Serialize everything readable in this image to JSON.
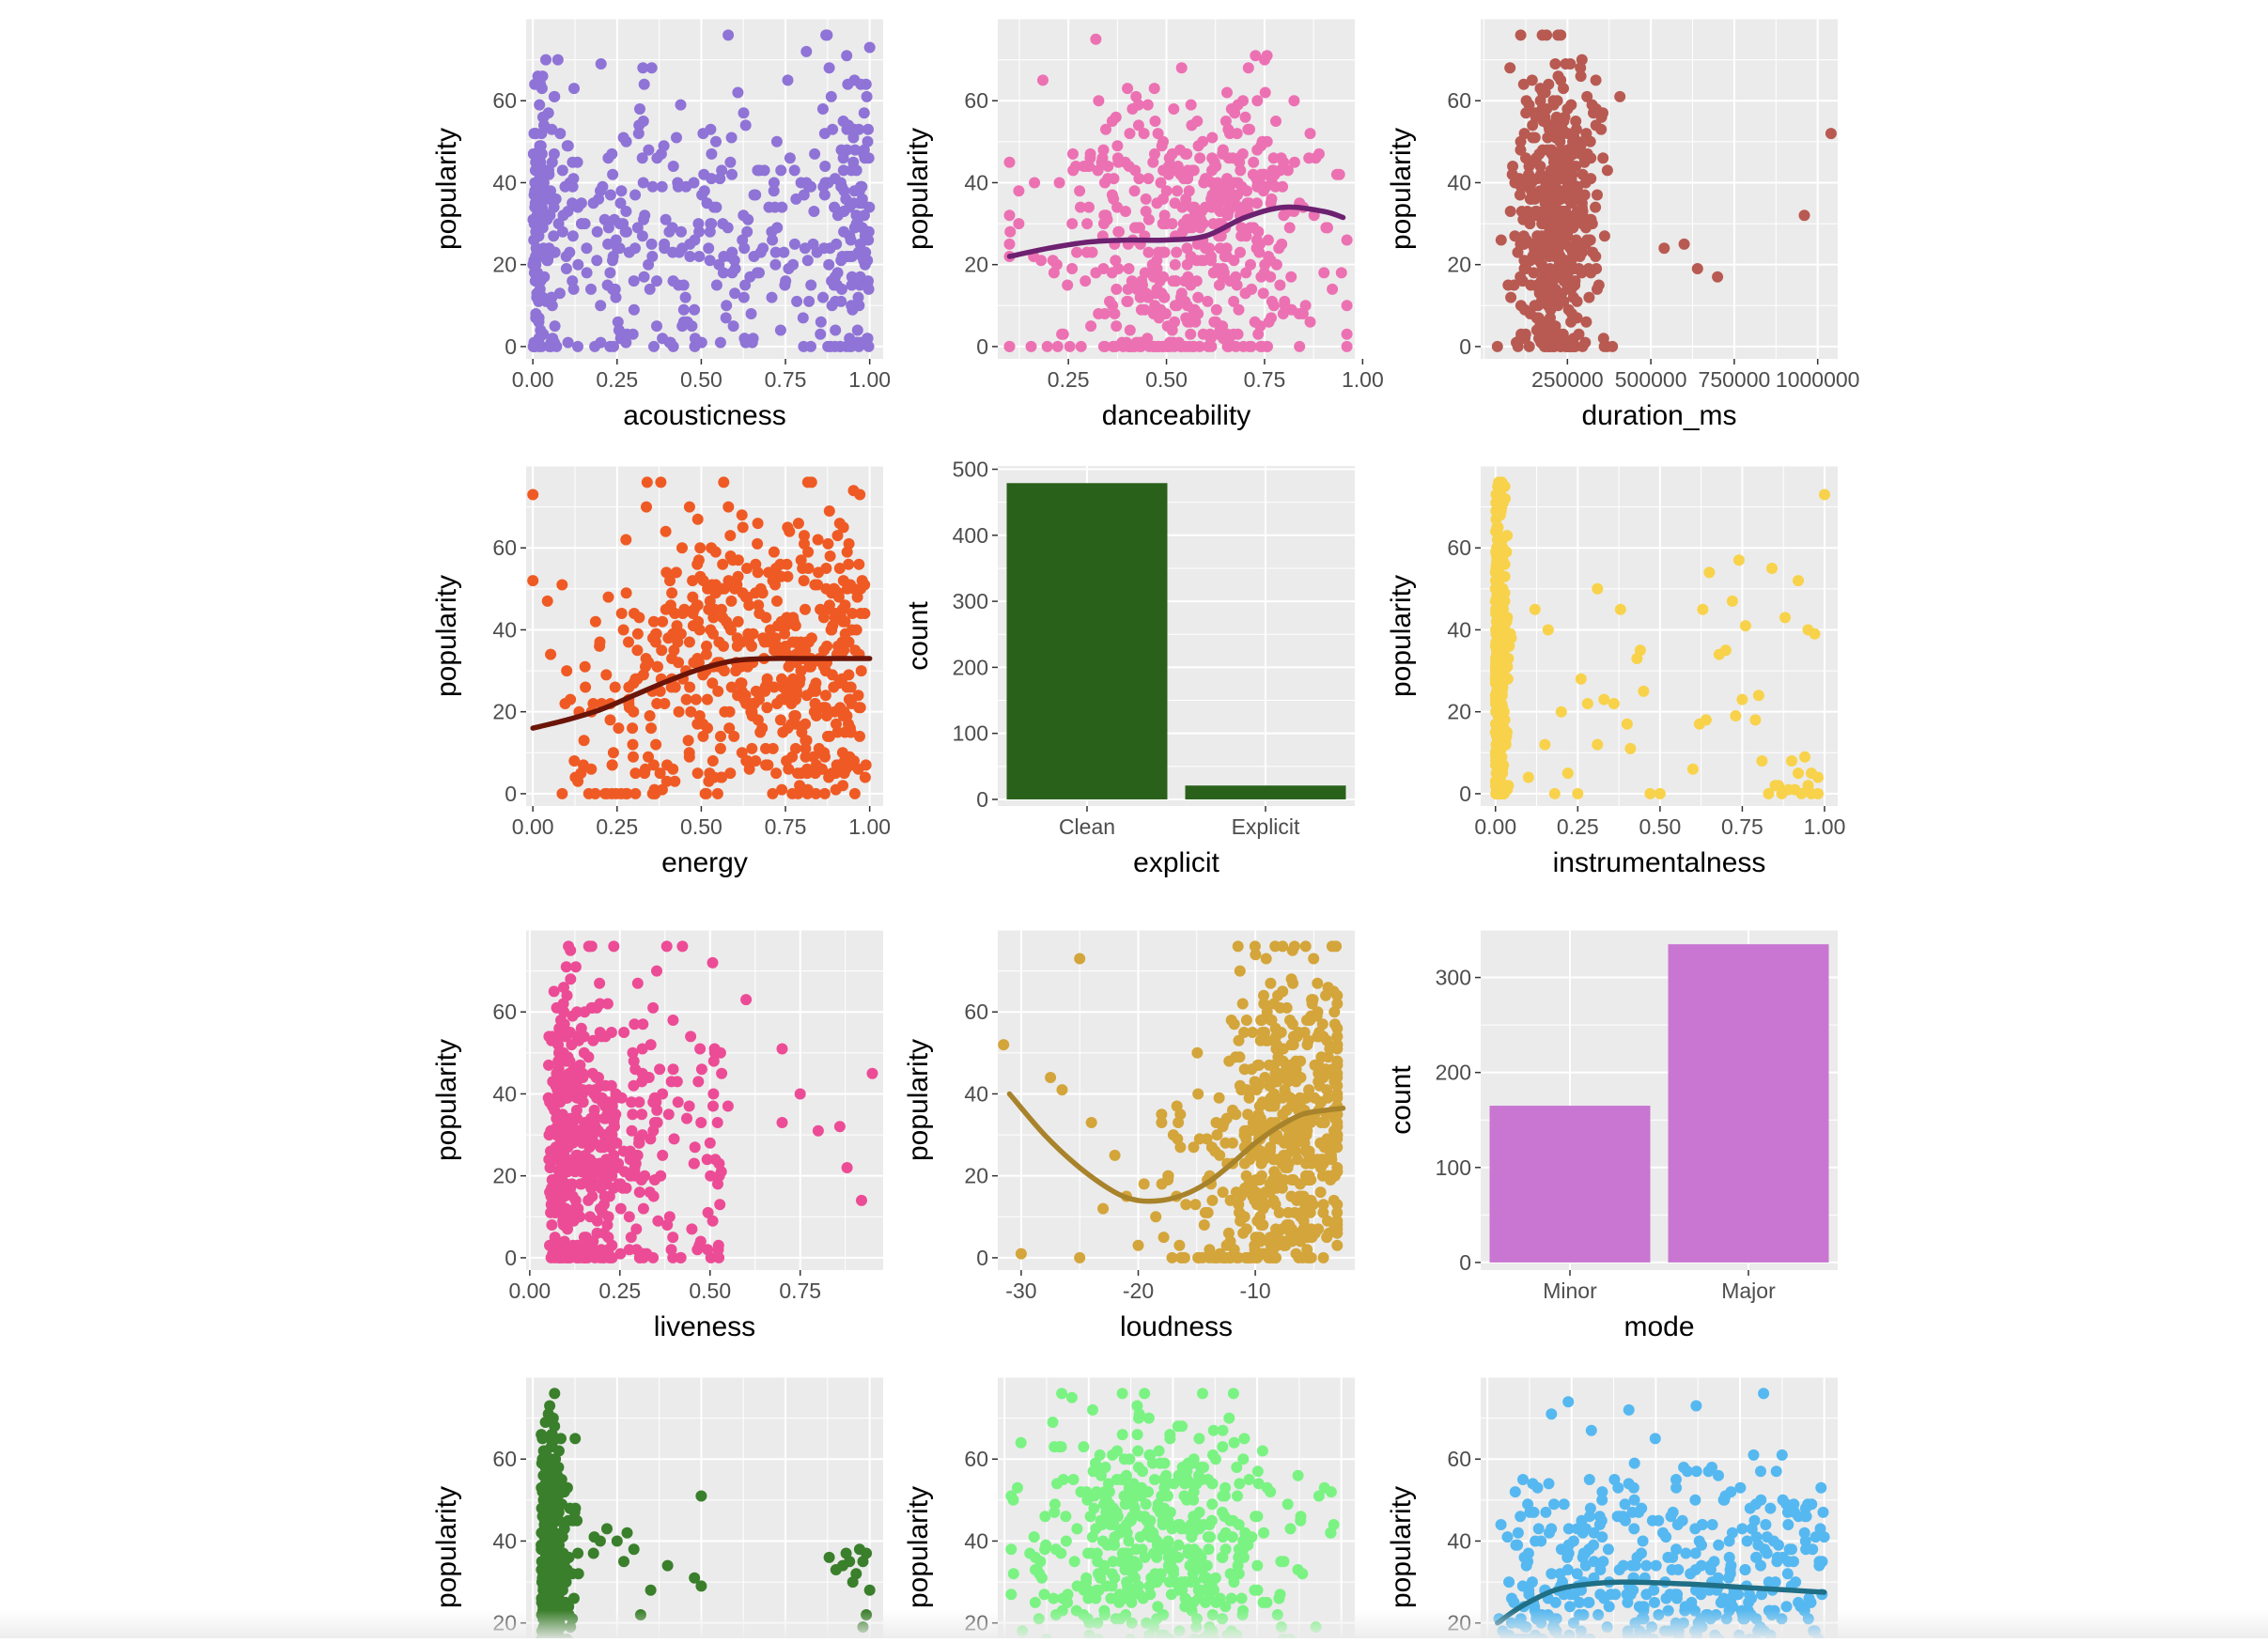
{
  "chart_data": [
    {
      "type": "scatter",
      "xlabel": "acousticness",
      "ylabel": "popularity",
      "color": "#8f73d6",
      "xlim": [
        -0.02,
        1.04
      ],
      "ylim": [
        -3,
        80
      ],
      "xticks": [
        0,
        0.25,
        0.5,
        0.75,
        1
      ],
      "xtick_labels": [
        "0.00",
        "0.25",
        "0.50",
        "0.75",
        "1.00"
      ],
      "yticks": [
        0,
        20,
        40,
        60
      ],
      "ytick_labels": [
        "0",
        "20",
        "40",
        "60"
      ],
      "smooth": null,
      "seed": 11,
      "n": 520,
      "x_dist": "acoustic",
      "y_mean": 30,
      "y_sd": 18,
      "y_max": 76,
      "extra_points": [
        [
          0.58,
          76
        ],
        [
          0.87,
          76
        ],
        [
          1.0,
          73
        ],
        [
          0.88,
          68
        ]
      ]
    },
    {
      "type": "scatter",
      "xlabel": "danceability",
      "ylabel": "popularity",
      "color": "#ec71b3",
      "xlim": [
        0.07,
        0.98
      ],
      "ylim": [
        -3,
        80
      ],
      "xticks": [
        0.25,
        0.5,
        0.75,
        1
      ],
      "xtick_labels": [
        "0.25",
        "0.50",
        "0.75",
        "1.00"
      ],
      "yticks": [
        0,
        20,
        40,
        60
      ],
      "ytick_labels": [
        "0",
        "20",
        "40",
        "60"
      ],
      "smooth": {
        "color": "#6d2170",
        "x": [
          0.1,
          0.2,
          0.3,
          0.4,
          0.5,
          0.6,
          0.7,
          0.8,
          0.9,
          0.95
        ],
        "y": [
          22,
          24,
          25.5,
          26,
          26,
          27,
          31.5,
          34,
          33,
          31.5
        ]
      },
      "seed": 22,
      "n": 520,
      "x_dist": "normal",
      "x_mean": 0.56,
      "x_sd": 0.17,
      "x_min": 0.1,
      "x_max": 0.96,
      "y_mean": 28,
      "y_sd": 18,
      "y_max": 76,
      "extra_points": [
        [
          0.32,
          75
        ],
        [
          0.75,
          70
        ],
        [
          0.96,
          0
        ]
      ]
    },
    {
      "type": "scatter",
      "xlabel": "duration_ms",
      "ylabel": "popularity",
      "color": "#b85a52",
      "xlim": [
        -10000,
        1060000
      ],
      "ylim": [
        -3,
        80
      ],
      "xticks": [
        250000,
        500000,
        750000,
        1000000
      ],
      "xtick_labels": [
        "250000",
        "500000",
        "750000",
        "1000000"
      ],
      "yticks": [
        0,
        20,
        40,
        60
      ],
      "ytick_labels": [
        "0",
        "20",
        "40",
        "60"
      ],
      "smooth": null,
      "seed": 33,
      "n": 520,
      "x_dist": "normal",
      "x_mean": 215000,
      "x_sd": 60000,
      "x_min": 40000,
      "x_max": 480000,
      "y_mean": 30,
      "y_sd": 17,
      "y_max": 76,
      "extra_points": [
        [
          1040000,
          52
        ],
        [
          960000,
          32
        ],
        [
          600000,
          25
        ],
        [
          540000,
          24
        ],
        [
          640000,
          19
        ],
        [
          700000,
          17
        ],
        [
          110000,
          76
        ],
        [
          230000,
          76
        ]
      ]
    },
    {
      "type": "scatter",
      "xlabel": "energy",
      "ylabel": "popularity",
      "color": "#ef5a24",
      "xlim": [
        -0.02,
        1.04
      ],
      "ylim": [
        -3,
        80
      ],
      "xticks": [
        0,
        0.25,
        0.5,
        0.75,
        1
      ],
      "xtick_labels": [
        "0.00",
        "0.25",
        "0.50",
        "0.75",
        "1.00"
      ],
      "yticks": [
        0,
        20,
        40,
        60
      ],
      "ytick_labels": [
        "0",
        "20",
        "40",
        "60"
      ],
      "smooth": {
        "color": "#6b1509",
        "x": [
          0,
          0.1,
          0.2,
          0.3,
          0.4,
          0.5,
          0.6,
          0.7,
          0.8,
          0.9,
          1.0
        ],
        "y": [
          16,
          18,
          20.5,
          24,
          27.5,
          30.5,
          32.5,
          33,
          33,
          33,
          33
        ]
      },
      "seed": 44,
      "n": 560,
      "x_dist": "beta_high",
      "y_mean": 28,
      "y_sd": 18,
      "y_max": 76,
      "extra_points": [
        [
          0.0,
          73
        ],
        [
          0.38,
          76
        ],
        [
          0.0,
          52
        ]
      ]
    },
    {
      "type": "bar",
      "xlabel": "explicit",
      "ylabel": "count",
      "color": "#29611a",
      "categories": [
        "Clean",
        "Explicit"
      ],
      "values": [
        479,
        21
      ],
      "ylim": [
        -10,
        505
      ],
      "yticks": [
        0,
        100,
        200,
        300,
        400,
        500
      ],
      "ytick_labels": [
        "0",
        "100",
        "200",
        "300",
        "400",
        "500"
      ]
    },
    {
      "type": "scatter",
      "xlabel": "instrumentalness",
      "ylabel": "popularity",
      "color": "#f8d24a",
      "xlim": [
        -0.045,
        1.04
      ],
      "ylim": [
        -3,
        80
      ],
      "xticks": [
        0,
        0.25,
        0.5,
        0.75,
        1
      ],
      "xtick_labels": [
        "0.00",
        "0.25",
        "0.50",
        "0.75",
        "1.00"
      ],
      "yticks": [
        0,
        20,
        40,
        60
      ],
      "ytick_labels": [
        "0",
        "20",
        "40",
        "60"
      ],
      "smooth": null,
      "seed": 55,
      "n": 430,
      "x_dist": "near_zero",
      "y_mean": 30,
      "y_sd": 19,
      "y_max": 76,
      "extra_points": [
        [
          0.16,
          40
        ],
        [
          0.12,
          45
        ],
        [
          0.31,
          50
        ],
        [
          0.38,
          45
        ],
        [
          0.43,
          33
        ],
        [
          0.44,
          35
        ],
        [
          0.63,
          45
        ],
        [
          0.65,
          54
        ],
        [
          0.72,
          47
        ],
        [
          0.74,
          57
        ],
        [
          0.84,
          55
        ],
        [
          0.88,
          43
        ],
        [
          0.92,
          52
        ],
        [
          0.95,
          40
        ],
        [
          1.0,
          73
        ],
        [
          0.97,
          39
        ],
        [
          0.7,
          35
        ],
        [
          0.68,
          34
        ],
        [
          0.76,
          41
        ],
        [
          0.2,
          20
        ],
        [
          0.26,
          28
        ],
        [
          0.28,
          22
        ],
        [
          0.31,
          12
        ],
        [
          0.33,
          23
        ],
        [
          0.36,
          22
        ],
        [
          0.4,
          17
        ],
        [
          0.41,
          11
        ],
        [
          0.62,
          17
        ],
        [
          0.6,
          6
        ],
        [
          0.64,
          18
        ],
        [
          0.73,
          19
        ],
        [
          0.75,
          23
        ],
        [
          0.79,
          18
        ],
        [
          0.8,
          24
        ],
        [
          0.81,
          8
        ],
        [
          0.83,
          0
        ],
        [
          0.86,
          2
        ],
        [
          0.9,
          8
        ],
        [
          0.92,
          5
        ],
        [
          0.94,
          9
        ],
        [
          0.96,
          0
        ],
        [
          0.98,
          4
        ],
        [
          0.89,
          1
        ],
        [
          0.85,
          2
        ],
        [
          0.87,
          0
        ],
        [
          0.93,
          0
        ],
        [
          0.95,
          2
        ],
        [
          0.96,
          5
        ],
        [
          0.98,
          0
        ],
        [
          0.91,
          1
        ],
        [
          0.5,
          0
        ],
        [
          0.25,
          0
        ],
        [
          0.1,
          4
        ],
        [
          0.15,
          12
        ],
        [
          0.18,
          0
        ],
        [
          0.22,
          5
        ],
        [
          0.45,
          25
        ],
        [
          0.47,
          0
        ]
      ]
    },
    {
      "type": "scatter",
      "xlabel": "liveness",
      "ylabel": "popularity",
      "color": "#ec4c96",
      "xlim": [
        -0.01,
        0.98
      ],
      "ylim": [
        -3,
        80
      ],
      "xticks": [
        0,
        0.25,
        0.5,
        0.75
      ],
      "xtick_labels": [
        "0.00",
        "0.25",
        "0.50",
        "0.75"
      ],
      "yticks": [
        0,
        20,
        40,
        60
      ],
      "ytick_labels": [
        "0",
        "20",
        "40",
        "60"
      ],
      "smooth": null,
      "seed": 66,
      "n": 540,
      "x_dist": "liveness",
      "y_mean": 30,
      "y_sd": 18,
      "y_max": 76,
      "extra_points": [
        [
          0.38,
          76
        ],
        [
          0.95,
          45
        ],
        [
          0.92,
          14
        ],
        [
          0.86,
          32
        ],
        [
          0.75,
          40
        ],
        [
          0.7,
          33
        ],
        [
          0.88,
          22
        ],
        [
          0.8,
          31
        ],
        [
          0.6,
          63
        ],
        [
          0.55,
          37
        ],
        [
          0.5,
          28
        ],
        [
          0.7,
          51
        ]
      ]
    },
    {
      "type": "scatter",
      "xlabel": "loudness",
      "ylabel": "popularity",
      "color": "#d3a53a",
      "xlim": [
        -32,
        -1.5
      ],
      "ylim": [
        -3,
        80
      ],
      "xticks": [
        -30,
        -20,
        -10
      ],
      "xtick_labels": [
        "-30",
        "-20",
        "-10"
      ],
      "yticks": [
        0,
        20,
        40,
        60
      ],
      "ytick_labels": [
        "0",
        "20",
        "40",
        "60"
      ],
      "smooth": {
        "color": "#a8832b",
        "x": [
          -31,
          -28,
          -25,
          -22,
          -20,
          -18,
          -16,
          -14,
          -12,
          -10,
          -8,
          -6,
          -4,
          -2.5
        ],
        "y": [
          40,
          30,
          22,
          16,
          14,
          14,
          15.5,
          18.5,
          23,
          28,
          32,
          35,
          36,
          36.5
        ]
      },
      "seed": 77,
      "n": 560,
      "x_dist": "loud",
      "y_mean": 30,
      "y_sd": 19,
      "y_max": 76,
      "extra_points": [
        [
          -31.5,
          52
        ],
        [
          -30,
          1
        ],
        [
          -25,
          73
        ],
        [
          -26.5,
          41
        ],
        [
          -27.5,
          44
        ],
        [
          -24,
          33
        ],
        [
          -22,
          25
        ],
        [
          -21,
          15
        ],
        [
          -23,
          12
        ],
        [
          -25,
          0
        ],
        [
          -20,
          3
        ],
        [
          -19.5,
          18
        ],
        [
          -18,
          35
        ],
        [
          -17,
          30
        ],
        [
          -18.5,
          10
        ]
      ]
    },
    {
      "type": "bar",
      "xlabel": "mode",
      "ylabel": "count",
      "color": "#c876d1",
      "categories": [
        "Minor",
        "Major"
      ],
      "values": [
        165,
        335
      ],
      "ylim": [
        -8,
        350
      ],
      "yticks": [
        0,
        100,
        200,
        300
      ],
      "ytick_labels": [
        "0",
        "100",
        "200",
        "300"
      ]
    },
    {
      "type": "scatter",
      "xlabel": "",
      "ylabel": "popularity",
      "color": "#3a7f2b",
      "xlim": [
        -0.02,
        1.04
      ],
      "ylim": [
        -3,
        80
      ],
      "xticks": [
        0,
        0.25,
        0.5,
        0.75,
        1
      ],
      "xtick_labels": [],
      "yticks": [
        20,
        40,
        60
      ],
      "ytick_labels": [
        "20",
        "40",
        "60"
      ],
      "smooth": null,
      "seed": 88,
      "n": 480,
      "x_dist": "speech",
      "y_mean": 32,
      "y_sd": 18,
      "y_max": 76,
      "extra_points": [
        [
          0.88,
          36
        ],
        [
          0.9,
          33
        ],
        [
          0.92,
          34
        ],
        [
          0.94,
          35
        ],
        [
          0.96,
          32
        ],
        [
          0.98,
          35
        ],
        [
          0.99,
          37
        ],
        [
          0.97,
          38
        ],
        [
          0.95,
          30
        ],
        [
          0.93,
          37
        ],
        [
          1.0,
          28
        ],
        [
          0.99,
          22
        ],
        [
          0.98,
          19
        ],
        [
          0.4,
          34
        ],
        [
          0.5,
          51
        ],
        [
          0.5,
          29
        ],
        [
          0.48,
          31
        ],
        [
          0.35,
          28
        ],
        [
          0.32,
          22
        ],
        [
          0.3,
          38
        ],
        [
          0.25,
          40
        ],
        [
          0.2,
          40
        ],
        [
          0.22,
          43
        ],
        [
          0.18,
          37
        ],
        [
          0.28,
          42
        ],
        [
          0.27,
          35
        ]
      ]
    },
    {
      "type": "scatter",
      "xlabel": "",
      "ylabel": "popularity",
      "color": "#7af383",
      "xlim": [
        -0.02,
        1.04
      ],
      "ylim": [
        -3,
        80
      ],
      "xticks": [
        0,
        0.25,
        0.5,
        0.75,
        1
      ],
      "xtick_labels": [],
      "yticks": [
        20,
        40,
        60
      ],
      "ytick_labels": [
        "20",
        "40",
        "60"
      ],
      "smooth": null,
      "seed": 99,
      "n": 540,
      "x_dist": "normal",
      "x_mean": 0.45,
      "x_sd": 0.2,
      "x_min": 0.02,
      "x_max": 0.98,
      "y_mean": 36,
      "y_sd": 16,
      "y_max": 76,
      "extra_points": [
        [
          0.2,
          75
        ],
        [
          0.17,
          76
        ],
        [
          0.68,
          76
        ],
        [
          0.4,
          71
        ],
        [
          0.97,
          52
        ],
        [
          0.95,
          53
        ]
      ]
    },
    {
      "type": "scatter",
      "xlabel": "",
      "ylabel": "popularity",
      "color": "#56b8f0",
      "xlim": [
        -0.02,
        1.04
      ],
      "ylim": [
        -3,
        80
      ],
      "xticks": [
        0,
        0.25,
        0.5,
        0.75,
        1
      ],
      "xtick_labels": [],
      "yticks": [
        20,
        40,
        60
      ],
      "ytick_labels": [
        "20",
        "40",
        "60"
      ],
      "smooth": {
        "color": "#1f6f86",
        "x": [
          0.03,
          0.1,
          0.2,
          0.3,
          0.4,
          0.5,
          0.6,
          0.7,
          0.8,
          0.9,
          1.0
        ],
        "y": [
          20,
          24,
          28,
          29.5,
          30,
          29.8,
          29.5,
          29,
          28.5,
          28,
          27.5
        ]
      },
      "seed": 101,
      "n": 540,
      "x_dist": "uniform",
      "y_mean": 33,
      "y_sd": 16,
      "y_max": 76,
      "extra_points": [
        [
          0.82,
          76
        ],
        [
          0.24,
          74
        ],
        [
          0.62,
          73
        ],
        [
          0.42,
          72
        ],
        [
          0.19,
          71
        ]
      ]
    }
  ]
}
